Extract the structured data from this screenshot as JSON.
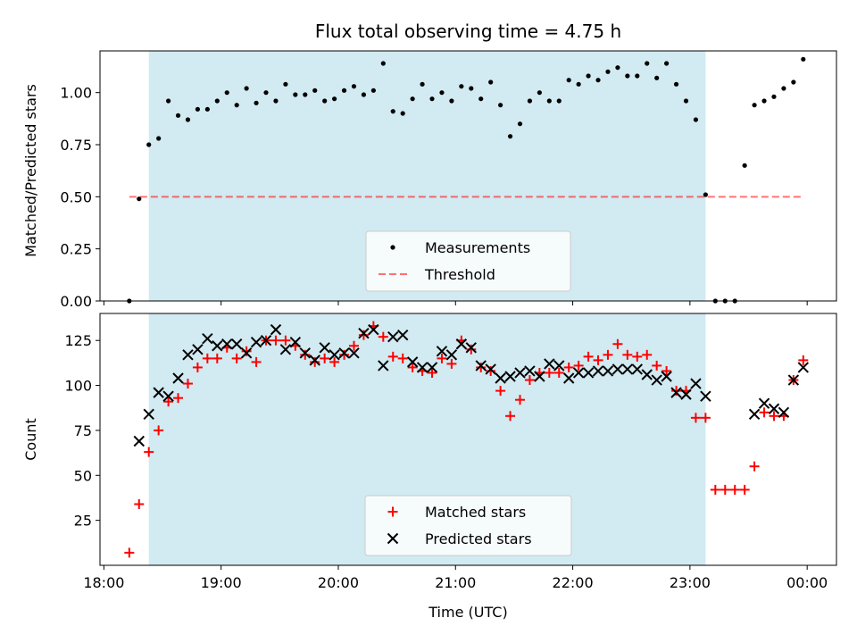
{
  "colors": {
    "span": "#add8e6",
    "measurement": "#000000",
    "threshold": "#ff0000",
    "matched": "#ff0000",
    "predicted": "#000000"
  },
  "chart_data": [
    {
      "type": "scatter",
      "title": "Flux total observing time = 4.75 h",
      "xlabel": "",
      "ylabel": "Matched/Predicted stars",
      "xlim": [
        "17:58",
        "00:15"
      ],
      "ylim": [
        0,
        1.2
      ],
      "x_ticks": [
        "18:00",
        "19:00",
        "20:00",
        "21:00",
        "22:00",
        "23:00",
        "00:00"
      ],
      "y_ticks": [
        "0.00",
        "0.25",
        "0.50",
        "0.75",
        "1.00"
      ],
      "y_tick_values": [
        0,
        0.25,
        0.5,
        0.75,
        1.0
      ],
      "shaded_span": [
        "18:23",
        "23:08"
      ],
      "legend_position": "lower-center",
      "series": [
        {
          "name": "Measurements",
          "marker": "dot",
          "x": [
            "18:13",
            "18:18",
            "18:23",
            "18:28",
            "18:33",
            "18:38",
            "18:43",
            "18:48",
            "18:53",
            "18:58",
            "19:03",
            "19:08",
            "19:13",
            "19:18",
            "19:23",
            "19:28",
            "19:33",
            "19:38",
            "19:43",
            "19:48",
            "19:53",
            "19:58",
            "20:03",
            "20:08",
            "20:13",
            "20:18",
            "20:23",
            "20:28",
            "20:33",
            "20:38",
            "20:43",
            "20:48",
            "20:53",
            "20:58",
            "21:03",
            "21:08",
            "21:13",
            "21:18",
            "21:23",
            "21:28",
            "21:33",
            "21:38",
            "21:43",
            "21:48",
            "21:53",
            "21:58",
            "22:03",
            "22:08",
            "22:13",
            "22:18",
            "22:23",
            "22:28",
            "22:33",
            "22:38",
            "22:43",
            "22:48",
            "22:53",
            "22:58",
            "23:03",
            "23:08",
            "23:13",
            "23:18",
            "23:23",
            "23:28",
            "23:33",
            "23:38",
            "23:43",
            "23:48",
            "23:53",
            "23:58"
          ],
          "values": [
            0.0,
            0.49,
            0.75,
            0.78,
            0.96,
            0.89,
            0.87,
            0.92,
            0.92,
            0.96,
            1.0,
            0.94,
            1.02,
            0.95,
            1.0,
            0.96,
            1.04,
            0.99,
            0.99,
            1.01,
            0.96,
            0.97,
            1.01,
            1.03,
            0.99,
            1.01,
            1.14,
            0.91,
            0.9,
            0.97,
            1.04,
            0.97,
            1.0,
            0.96,
            1.03,
            1.02,
            0.97,
            1.05,
            0.94,
            0.79,
            0.85,
            0.96,
            1.0,
            0.96,
            0.96,
            1.06,
            1.04,
            1.08,
            1.06,
            1.1,
            1.12,
            1.08,
            1.08,
            1.14,
            1.07,
            1.14,
            1.04,
            0.96,
            0.87,
            0.51,
            0.0,
            0.0,
            0.0,
            0.65,
            0.94,
            0.96,
            0.98,
            1.02,
            1.05,
            1.16
          ]
        },
        {
          "name": "Threshold",
          "marker": "dashed-line",
          "x": [
            "18:13",
            "23:58"
          ],
          "values": [
            0.5,
            0.5
          ]
        }
      ]
    },
    {
      "type": "scatter",
      "title": "",
      "xlabel": "Time (UTC)",
      "ylabel": "Count",
      "xlim": [
        "17:58",
        "00:15"
      ],
      "ylim": [
        0,
        140
      ],
      "x_ticks": [
        "18:00",
        "19:00",
        "20:00",
        "21:00",
        "22:00",
        "23:00",
        "00:00"
      ],
      "y_ticks": [
        "25",
        "50",
        "75",
        "100",
        "125"
      ],
      "y_tick_values": [
        25,
        50,
        75,
        100,
        125
      ],
      "shaded_span": [
        "18:23",
        "23:08"
      ],
      "legend_position": "lower-center",
      "series": [
        {
          "name": "Matched stars",
          "marker": "plus",
          "x": [
            "18:13",
            "18:18",
            "18:23",
            "18:28",
            "18:33",
            "18:38",
            "18:43",
            "18:48",
            "18:53",
            "18:58",
            "19:03",
            "19:08",
            "19:13",
            "19:18",
            "19:23",
            "19:28",
            "19:33",
            "19:38",
            "19:43",
            "19:48",
            "19:53",
            "19:58",
            "20:03",
            "20:08",
            "20:13",
            "20:18",
            "20:23",
            "20:28",
            "20:33",
            "20:38",
            "20:43",
            "20:48",
            "20:53",
            "20:58",
            "21:03",
            "21:08",
            "21:13",
            "21:18",
            "21:23",
            "21:28",
            "21:33",
            "21:38",
            "21:43",
            "21:48",
            "21:53",
            "21:58",
            "22:03",
            "22:08",
            "22:13",
            "22:18",
            "22:23",
            "22:28",
            "22:33",
            "22:38",
            "22:43",
            "22:48",
            "22:53",
            "22:58",
            "23:03",
            "23:08",
            "23:13",
            "23:18",
            "23:23",
            "23:28",
            "23:33",
            "23:38",
            "23:43",
            "23:48",
            "23:53",
            "23:58"
          ],
          "values": [
            7,
            34,
            63,
            75,
            91,
            93,
            101,
            110,
            115,
            115,
            121,
            115,
            119,
            113,
            125,
            125,
            125,
            122,
            117,
            113,
            115,
            113,
            117,
            122,
            128,
            133,
            127,
            116,
            115,
            110,
            108,
            107,
            115,
            112,
            125,
            120,
            110,
            108,
            97,
            83,
            92,
            103,
            107,
            107,
            107,
            110,
            111,
            116,
            114,
            117,
            123,
            117,
            116,
            117,
            111,
            108,
            97,
            97,
            82,
            82,
            42,
            42,
            42,
            42,
            55,
            85,
            83,
            83,
            103,
            114
          ]
        },
        {
          "name": "Predicted stars",
          "marker": "cross",
          "x": [
            "18:18",
            "18:23",
            "18:28",
            "18:33",
            "18:38",
            "18:43",
            "18:48",
            "18:53",
            "18:58",
            "19:03",
            "19:08",
            "19:13",
            "19:18",
            "19:23",
            "19:28",
            "19:33",
            "19:38",
            "19:43",
            "19:48",
            "19:53",
            "19:58",
            "20:03",
            "20:08",
            "20:13",
            "20:18",
            "20:23",
            "20:28",
            "20:33",
            "20:38",
            "20:43",
            "20:48",
            "20:53",
            "20:58",
            "21:03",
            "21:08",
            "21:13",
            "21:18",
            "21:23",
            "21:28",
            "21:33",
            "21:38",
            "21:43",
            "21:48",
            "21:53",
            "21:58",
            "22:03",
            "22:08",
            "22:13",
            "22:18",
            "22:23",
            "22:28",
            "22:33",
            "22:38",
            "22:43",
            "22:48",
            "22:53",
            "22:58",
            "23:03",
            "23:08",
            "23:33",
            "23:38",
            "23:43",
            "23:48",
            "23:53",
            "23:58"
          ],
          "values": [
            69,
            84,
            96,
            94,
            104,
            117,
            120,
            126,
            122,
            123,
            123,
            118,
            124,
            125,
            131,
            120,
            124,
            118,
            114,
            121,
            117,
            118,
            118,
            129,
            131,
            111,
            127,
            128,
            113,
            110,
            110,
            119,
            117,
            123,
            121,
            111,
            109,
            104,
            105,
            107,
            108,
            105,
            112,
            111,
            104,
            107,
            107,
            108,
            108,
            109,
            109,
            109,
            106,
            103,
            105,
            96,
            95,
            101,
            94,
            84,
            90,
            87,
            85,
            103,
            110
          ]
        }
      ]
    }
  ]
}
